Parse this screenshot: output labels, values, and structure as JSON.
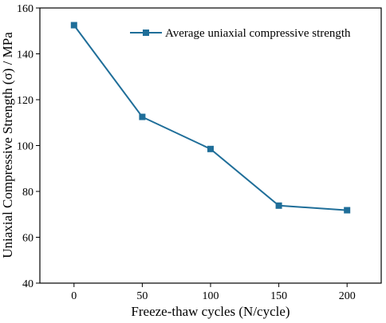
{
  "chart_data": {
    "type": "line",
    "xlabel": "Freeze-thaw cycles (N/cycle)",
    "ylabel": "Uniaxial Compressive Strength (σ) / MPa",
    "xlim": [
      -25,
      225
    ],
    "ylim": [
      40,
      160
    ],
    "x_ticks": [
      0,
      50,
      100,
      150,
      200
    ],
    "y_ticks": [
      40,
      60,
      80,
      100,
      120,
      140,
      160
    ],
    "grid": false,
    "legend_position": "top-right",
    "series": [
      {
        "name": "Average uniaxial compressive strength",
        "color": "#1f6e99",
        "marker": "square",
        "x": [
          0,
          50,
          100,
          150,
          200
        ],
        "y": [
          152.5,
          112.5,
          98.5,
          73.8,
          71.8
        ]
      }
    ]
  }
}
